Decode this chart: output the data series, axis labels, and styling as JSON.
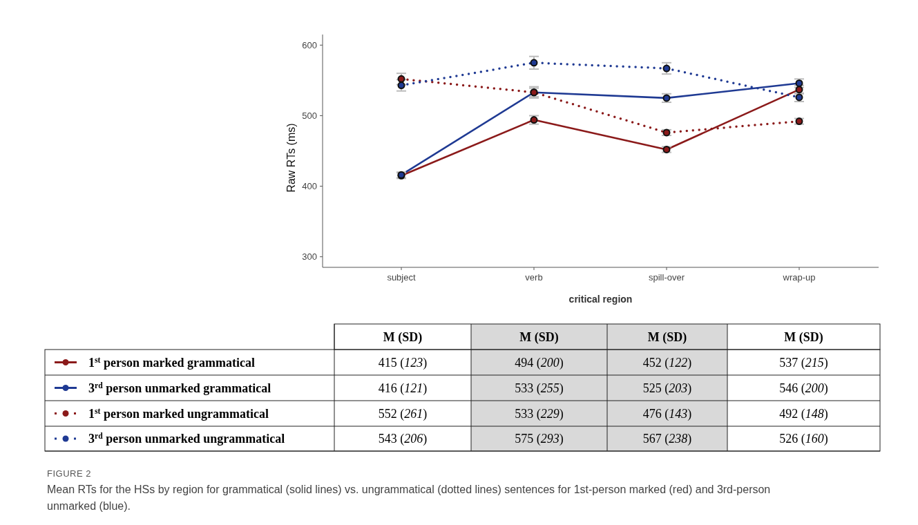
{
  "chart_data": {
    "type": "line",
    "xlabel": "critical region",
    "ylabel": "Raw RTs (ms)",
    "categories": [
      "subject",
      "verb",
      "spill-over",
      "wrap-up"
    ],
    "ylim": [
      285,
      615
    ],
    "yticks": [
      300,
      400,
      500,
      600
    ],
    "grid": false,
    "legend": "bottom",
    "marker": "circle",
    "series": [
      {
        "name": "1$^{st}$ person marked grammatical",
        "color": "#8b1a1a",
        "line_style": "solid",
        "values": [
          415,
          494,
          452,
          537
        ],
        "errors": [
          4,
          6,
          4,
          6
        ],
        "value_labels": [
          "415 (123)",
          "494 (200)",
          "452 (122)",
          "537 (215)"
        ]
      },
      {
        "name": "3$^{rd}$ person unmarked grammatical",
        "color": "#1f3a93",
        "line_style": "solid",
        "values": [
          416,
          533,
          525,
          546
        ],
        "errors": [
          4,
          8,
          6,
          6
        ],
        "value_labels": [
          "416 (121)",
          "533 (255)",
          "525 (203)",
          "546 (200)"
        ]
      },
      {
        "name": "1$^{st}$ person marked ungrammatical",
        "color": "#8b1a1a",
        "line_style": "dotted",
        "values": [
          552,
          533,
          476,
          492
        ],
        "errors": [
          8,
          6,
          4,
          4
        ],
        "value_labels": [
          "552 (261)",
          "533 (229)",
          "476 (143)",
          "492 (148)"
        ]
      },
      {
        "name": "3$^{rd}$ person unmarked ungrammatical",
        "color": "#1f3a93",
        "line_style": "dotted",
        "values": [
          543,
          575,
          567,
          526
        ],
        "errors": [
          8,
          9,
          8,
          6
        ],
        "value_labels": [
          "543 (206)",
          "575 (293)",
          "567 (238)",
          "526 (160)"
        ]
      }
    ],
    "annotations": [
      "M (SD)",
      "M (SD)",
      "M (SD)",
      "M (SD)",
      "FIGURE 2",
      "Mean RTs for the HSs by region for grammatical (solid lines) vs. ungrammatical (dotted lines) sentences for 1st-person marked (red) and 3rd-person unmarked (blue)."
    ]
  }
}
